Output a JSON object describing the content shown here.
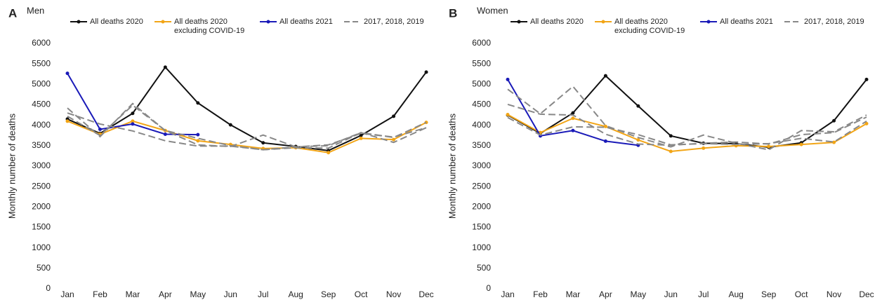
{
  "chart_data": [
    {
      "type": "line",
      "panel_label": "A",
      "title": "Men",
      "y_label": "Monthly number of deaths",
      "categories": [
        "Jan",
        "Feb",
        "Mar",
        "Apr",
        "May",
        "Jun",
        "Jul",
        "Aug",
        "Sep",
        "Oct",
        "Nov",
        "Dec"
      ],
      "ylim": [
        0,
        6000
      ],
      "yticks": [
        0,
        500,
        1000,
        1500,
        2000,
        2500,
        3000,
        3500,
        4000,
        4500,
        5000,
        5500,
        6000
      ],
      "grid": false,
      "series": [
        {
          "name": "All deaths 2020",
          "color": "#111111",
          "values": [
            4150,
            3800,
            4290,
            5420,
            4545,
            4010,
            3570,
            3480,
            3380,
            3750,
            4220,
            5300
          ]
        },
        {
          "name": "All deaths 2020 excluding COVID-19",
          "color": "#f2a516",
          "values": [
            4100,
            3780,
            4100,
            3870,
            3620,
            3530,
            3430,
            3450,
            3330,
            3680,
            3650,
            4070
          ]
        },
        {
          "name": "All deaths 2021",
          "color": "#1a1ab8",
          "values": [
            5270,
            3900,
            4030,
            3780,
            3770,
            null,
            null,
            null,
            null,
            null,
            null,
            null
          ]
        },
        {
          "name": "2017, 2018, 2019",
          "color": "#888888",
          "linestyle": "dashed",
          "lines": [
            [
              4420,
              3720,
              4530,
              3870,
              3520,
              3480,
              3760,
              3470,
              3500,
              3820,
              3580,
              3940
            ],
            [
              4300,
              4030,
              3860,
              3620,
              3490,
              3490,
              3400,
              3450,
              3440,
              3820,
              3700,
              4070
            ],
            [
              4220,
              3750,
              4490,
              3870,
              3680,
              3500,
              3400,
              3470,
              3520,
              3800,
              3710,
              3940
            ]
          ]
        }
      ]
    },
    {
      "type": "line",
      "panel_label": "B",
      "title": "Women",
      "y_label": "Monthly number of deaths",
      "categories": [
        "Jan",
        "Feb",
        "Mar",
        "Apr",
        "May",
        "Jun",
        "Jul",
        "Aug",
        "Sep",
        "Oct",
        "Nov",
        "Dec"
      ],
      "ylim": [
        0,
        6000
      ],
      "yticks": [
        0,
        500,
        1000,
        1500,
        2000,
        2500,
        3000,
        3500,
        4000,
        4500,
        5000,
        5500,
        6000
      ],
      "grid": false,
      "series": [
        {
          "name": "All deaths 2020",
          "color": "#111111",
          "values": [
            4250,
            3800,
            4300,
            5210,
            4470,
            3740,
            3560,
            3550,
            3460,
            3570,
            4110,
            5120
          ]
        },
        {
          "name": "All deaths 2020 excluding COVID-19",
          "color": "#f2a516",
          "values": [
            4260,
            3820,
            4170,
            3970,
            3640,
            3360,
            3440,
            3500,
            3480,
            3530,
            3580,
            4040
          ]
        },
        {
          "name": "All deaths 2021",
          "color": "#1a1ab8",
          "values": [
            5120,
            3740,
            3870,
            3610,
            3510,
            null,
            null,
            null,
            null,
            null,
            null,
            null
          ]
        },
        {
          "name": "2017, 2018, 2019",
          "color": "#888888",
          "linestyle": "dashed",
          "lines": [
            [
              4880,
              4280,
              4950,
              3990,
              3700,
              3470,
              3760,
              3560,
              3400,
              3870,
              3840,
              4250
            ],
            [
              4510,
              4270,
              4250,
              3780,
              3540,
              3510,
              3560,
              3590,
              3540,
              3770,
              3820,
              4200
            ],
            [
              4190,
              3760,
              3960,
              3950,
              3770,
              3520,
              3550,
              3530,
              3550,
              3680,
              3590,
              4100
            ]
          ]
        }
      ]
    }
  ]
}
